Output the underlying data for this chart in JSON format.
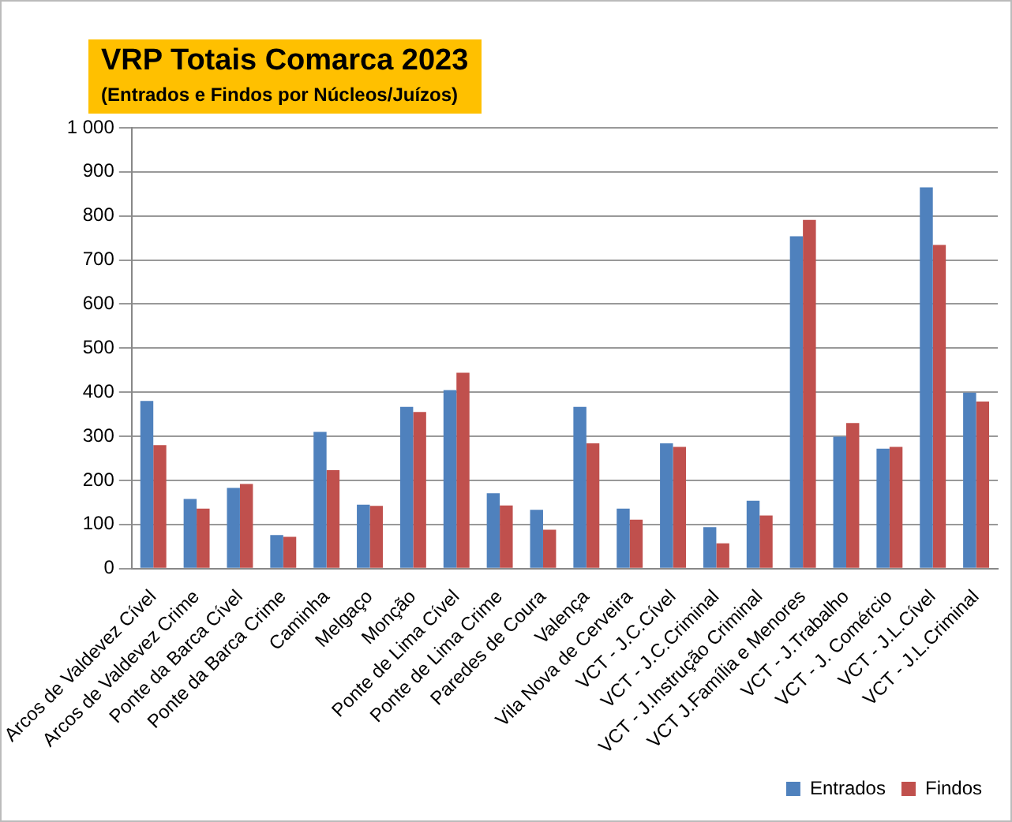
{
  "chart_data": {
    "type": "bar",
    "title": "VRP Totais Comarca 2023",
    "subtitle": "(Entrados e Findos por Núcleos/Juízos)",
    "categories": [
      "Arcos de Valdevez Cível",
      "Arcos de Valdevez Crime",
      "Ponte da Barca Cível",
      "Ponte da Barca Crime",
      "Caminha",
      "Melgaço",
      "Monção",
      "Ponte de Lima Cível",
      "Ponte de Lima Crime",
      "Paredes de Coura",
      "Valença",
      "Vila Nova de Cerveira",
      "VCT - J.C.Cível",
      "VCT - J.C.Criminal",
      "VCT - J.Instrução Criminal",
      "VCT J.Família e Menores",
      "VCT - J.Trabalho",
      "VCT - J. Comércio",
      "VCT - J.L.Cível",
      "VCT - J.L.Criminal"
    ],
    "series": [
      {
        "name": "Entrados",
        "color": "#4f81bd",
        "values": [
          380,
          158,
          183,
          76,
          310,
          145,
          367,
          405,
          171,
          133,
          367,
          136,
          284,
          94,
          154,
          754,
          299,
          272,
          865,
          399
        ]
      },
      {
        "name": "Findos",
        "color": "#c0504d",
        "values": [
          280,
          136,
          192,
          72,
          223,
          142,
          355,
          444,
          143,
          88,
          284,
          111,
          276,
          57,
          120,
          791,
          330,
          276,
          734,
          379
        ]
      }
    ],
    "ylim": [
      0,
      1000
    ],
    "yticks": [
      0,
      100,
      200,
      300,
      400,
      500,
      600,
      700,
      800,
      900,
      {
        "value": 1000,
        "label": "1 000"
      }
    ],
    "grid": "y",
    "legend": "bottom right"
  }
}
